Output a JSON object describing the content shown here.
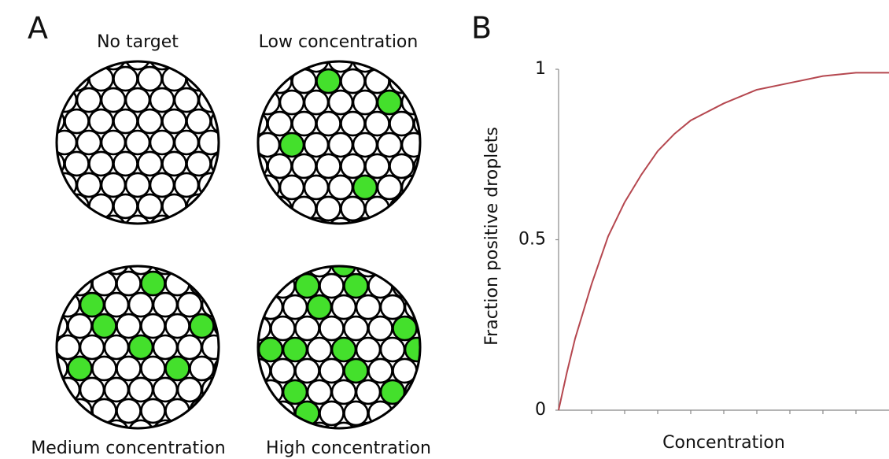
{
  "panel_a": {
    "label": "A",
    "droplets": [
      {
        "label": "No target"
      },
      {
        "label": "Low concentration"
      },
      {
        "label": "Medium concentration"
      },
      {
        "label": "High concentration"
      }
    ]
  },
  "chart_data": {
    "type": "line",
    "panel_label": "B",
    "x": [
      0,
      0.25,
      0.5,
      1,
      1.5,
      2,
      2.5,
      3,
      3.5,
      4,
      5,
      6,
      7,
      8,
      9,
      10
    ],
    "series": [
      {
        "color": "#b5474f",
        "values": [
          0,
          0.11,
          0.21,
          0.37,
          0.51,
          0.61,
          0.69,
          0.76,
          0.81,
          0.85,
          0.9,
          0.94,
          0.96,
          0.98,
          0.99,
          0.99
        ]
      }
    ],
    "xlabel": "Concentration",
    "ylabel": "Fraction positive droplets",
    "xlim": [
      0,
      10
    ],
    "xticks": [
      1,
      2,
      3,
      4,
      5,
      6,
      7,
      8,
      9
    ],
    "ylim": [
      0,
      1
    ],
    "yticks": [
      0,
      0.5,
      1
    ]
  }
}
